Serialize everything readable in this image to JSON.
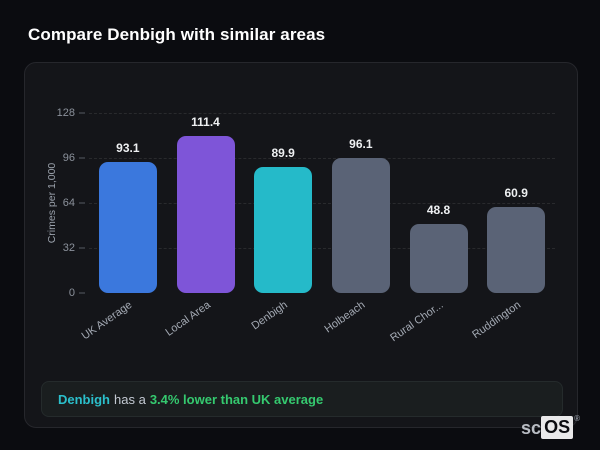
{
  "page": {
    "title": "Compare Denbigh with similar areas"
  },
  "chart_data": {
    "type": "bar",
    "title": "Compare Denbigh with similar areas",
    "categories": [
      "UK Average",
      "Local Area",
      "Denbigh",
      "Holbeach",
      "Rural Chor...",
      "Ruddington"
    ],
    "values": [
      93.1,
      111.4,
      89.9,
      96.1,
      48.8,
      60.9
    ],
    "value_labels": [
      "93.1",
      "111.4",
      "89.9",
      "96.1",
      "48.8",
      "60.9"
    ],
    "bar_colors": [
      "#3b78dd",
      "#7e55d8",
      "#25bac9",
      "#5a6376",
      "#5a6376",
      "#5a6376"
    ],
    "xlabel": "",
    "ylabel": "Crimes per 1,000",
    "yticks": [
      0,
      32,
      64,
      96,
      128
    ],
    "ylim": [
      0,
      128
    ],
    "grid": "horizontal-dashed",
    "legend": "none"
  },
  "note": {
    "area_name": "Denbigh",
    "middle_text": "has a",
    "highlight_text": "3.4% lower than UK average",
    "area_color": "#2bbfcb",
    "highlight_color": "#35c96f"
  },
  "logo": {
    "prefix": "sc",
    "suffix": "OS",
    "registered_mark": "®"
  }
}
